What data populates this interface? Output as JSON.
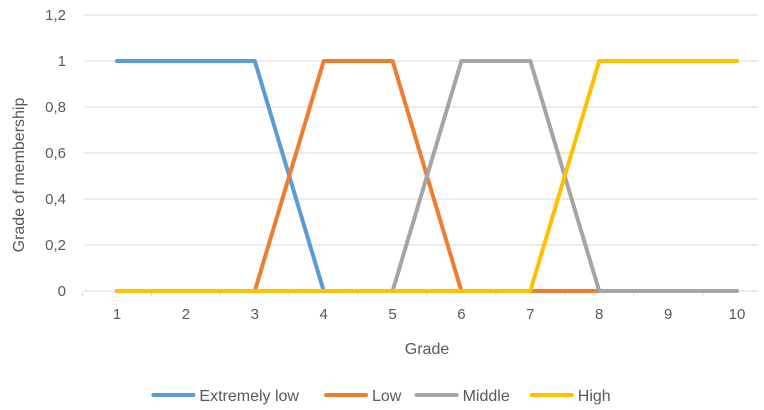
{
  "chart_data": {
    "type": "line",
    "xlabel": "Grade",
    "ylabel": "Grade of membership",
    "x": [
      1,
      2,
      3,
      4,
      5,
      6,
      7,
      8,
      9,
      10
    ],
    "x_tick_labels": [
      "1",
      "2",
      "3",
      "4",
      "5",
      "6",
      "7",
      "8",
      "9",
      "10"
    ],
    "y_tick_labels": [
      "0",
      "0,2",
      "0,4",
      "0,6",
      "0,8",
      "1",
      "1,2"
    ],
    "ylim": [
      0,
      1.2
    ],
    "y_ticks": [
      0,
      0.2,
      0.4,
      0.6,
      0.8,
      1.0,
      1.2
    ],
    "grid": true,
    "legend_position": "bottom",
    "series": [
      {
        "name": "Extremely low",
        "color": "#5b9bd5",
        "values": [
          1,
          1,
          1,
          0,
          0,
          0,
          0,
          0,
          0,
          0
        ]
      },
      {
        "name": "Low",
        "color": "#ed7d31",
        "values": [
          0,
          0,
          0,
          1,
          1,
          0,
          0,
          0,
          0,
          0
        ]
      },
      {
        "name": "Middle",
        "color": "#a5a5a5",
        "values": [
          0,
          0,
          0,
          0,
          0,
          1,
          1,
          0,
          0,
          0
        ]
      },
      {
        "name": "High",
        "color": "#ffc000",
        "values": [
          0,
          0,
          0,
          0,
          0,
          0,
          0,
          1,
          1,
          1
        ]
      }
    ]
  }
}
